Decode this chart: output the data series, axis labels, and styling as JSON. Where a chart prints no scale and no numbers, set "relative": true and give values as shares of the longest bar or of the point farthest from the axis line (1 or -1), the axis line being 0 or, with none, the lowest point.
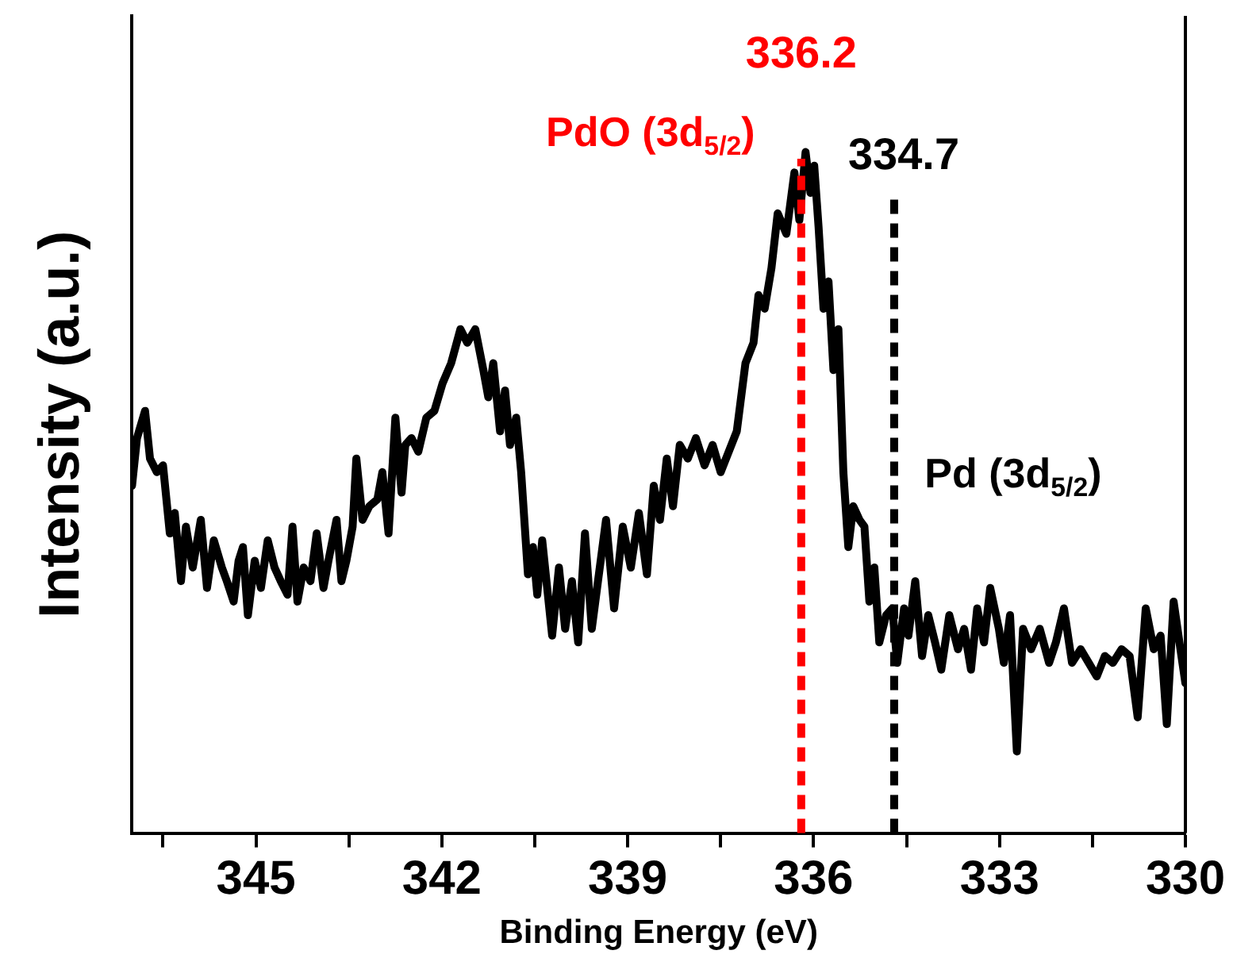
{
  "chart_data": {
    "type": "line",
    "relative": true,
    "xlabel": "Binding Energy (eV)",
    "ylabel": "Intensity (a.u.)",
    "xlim": [
      347,
      330
    ],
    "xticks": [
      {
        "value": 346.5,
        "label": null
      },
      345,
      {
        "value": 343.5,
        "label": null
      },
      342,
      {
        "value": 340.5,
        "label": null
      },
      339,
      {
        "value": 337.5,
        "label": null
      },
      336,
      {
        "value": 334.5,
        "label": null
      },
      333,
      {
        "value": 331.5,
        "label": null
      },
      330
    ],
    "grid": false,
    "legend": false,
    "marker": "none",
    "line_style": "solid",
    "series": [
      {
        "color": "#000000",
        "x": [
          347.0,
          346.92,
          346.79,
          346.71,
          346.6,
          346.5,
          346.39,
          346.31,
          346.21,
          346.13,
          346.02,
          345.89,
          345.79,
          345.68,
          345.55,
          345.47,
          345.36,
          345.28,
          345.21,
          345.13,
          345.02,
          344.92,
          344.81,
          344.7,
          344.6,
          344.49,
          344.41,
          344.33,
          344.23,
          344.12,
          344.02,
          343.91,
          343.83,
          343.7,
          343.62,
          343.54,
          343.44,
          343.38,
          343.28,
          343.17,
          343.04,
          342.96,
          342.86,
          342.75,
          342.65,
          342.59,
          342.49,
          342.38,
          342.25,
          342.12,
          341.99,
          341.85,
          341.7,
          341.59,
          341.46,
          341.33,
          341.25,
          341.17,
          341.06,
          340.98,
          340.9,
          340.8,
          340.72,
          340.61,
          340.53,
          340.46,
          340.38,
          340.3,
          340.22,
          340.11,
          340.01,
          339.9,
          339.8,
          339.69,
          339.58,
          339.48,
          339.35,
          339.22,
          339.08,
          338.95,
          338.82,
          338.69,
          338.58,
          338.48,
          338.37,
          338.27,
          338.16,
          338.03,
          337.9,
          337.76,
          337.63,
          337.5,
          337.37,
          337.24,
          337.1,
          336.97,
          336.89,
          336.79,
          336.68,
          336.58,
          336.44,
          336.31,
          336.23,
          336.13,
          336.05,
          335.99,
          335.92,
          335.84,
          335.76,
          335.68,
          335.6,
          335.52,
          335.44,
          335.36,
          335.26,
          335.18,
          335.1,
          335.02,
          334.94,
          334.83,
          334.73,
          334.65,
          334.54,
          334.47,
          334.36,
          334.25,
          334.15,
          334.04,
          333.94,
          333.81,
          333.67,
          333.57,
          333.46,
          333.36,
          333.25,
          333.15,
          333.01,
          332.93,
          332.83,
          332.72,
          332.62,
          332.49,
          332.35,
          332.2,
          332.09,
          331.96,
          331.83,
          331.69,
          331.56,
          331.43,
          331.3,
          331.17,
          331.03,
          330.9,
          330.77,
          330.64,
          330.51,
          330.4,
          330.3,
          330.19,
          330.08,
          330.0
        ],
        "values": [
          0.51,
          0.58,
          0.62,
          0.55,
          0.53,
          0.54,
          0.44,
          0.47,
          0.37,
          0.45,
          0.39,
          0.46,
          0.36,
          0.43,
          0.39,
          0.37,
          0.34,
          0.4,
          0.42,
          0.32,
          0.4,
          0.36,
          0.43,
          0.39,
          0.37,
          0.35,
          0.45,
          0.34,
          0.39,
          0.37,
          0.44,
          0.36,
          0.4,
          0.46,
          0.37,
          0.4,
          0.45,
          0.55,
          0.46,
          0.48,
          0.49,
          0.53,
          0.44,
          0.61,
          0.5,
          0.57,
          0.58,
          0.56,
          0.61,
          0.62,
          0.66,
          0.69,
          0.74,
          0.72,
          0.74,
          0.68,
          0.64,
          0.69,
          0.59,
          0.65,
          0.57,
          0.61,
          0.53,
          0.38,
          0.42,
          0.35,
          0.43,
          0.36,
          0.29,
          0.39,
          0.3,
          0.37,
          0.28,
          0.44,
          0.3,
          0.37,
          0.46,
          0.33,
          0.45,
          0.39,
          0.47,
          0.38,
          0.51,
          0.46,
          0.55,
          0.48,
          0.57,
          0.55,
          0.58,
          0.54,
          0.57,
          0.53,
          0.56,
          0.59,
          0.69,
          0.72,
          0.79,
          0.77,
          0.83,
          0.91,
          0.88,
          0.97,
          0.9,
          1.0,
          0.94,
          0.98,
          0.89,
          0.77,
          0.81,
          0.68,
          0.74,
          0.53,
          0.42,
          0.48,
          0.46,
          0.45,
          0.34,
          0.39,
          0.28,
          0.32,
          0.33,
          0.25,
          0.33,
          0.29,
          0.37,
          0.26,
          0.32,
          0.28,
          0.24,
          0.32,
          0.27,
          0.3,
          0.24,
          0.33,
          0.28,
          0.36,
          0.3,
          0.25,
          0.32,
          0.12,
          0.3,
          0.27,
          0.3,
          0.25,
          0.28,
          0.33,
          0.25,
          0.27,
          0.25,
          0.23,
          0.26,
          0.25,
          0.27,
          0.26,
          0.17,
          0.33,
          0.27,
          0.29,
          0.16,
          0.34,
          0.27,
          0.22
        ]
      }
    ],
    "ref_lines": [
      {
        "axis": "x",
        "value": 336.2,
        "label": "336.2",
        "color": "#ff0000",
        "line_style": "dashed"
      },
      {
        "axis": "x",
        "value": 334.7,
        "label": "334.7",
        "color": "#000000",
        "line_style": "dashed"
      }
    ],
    "annotations": [
      "PdO (3d$_{5/2}$)",
      "Pd (3d$_{5/2}$)"
    ]
  }
}
